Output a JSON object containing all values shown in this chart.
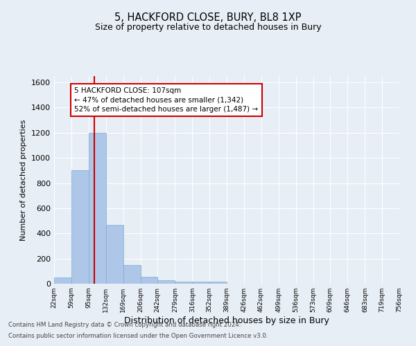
{
  "title1": "5, HACKFORD CLOSE, BURY, BL8 1XP",
  "title2": "Size of property relative to detached houses in Bury",
  "xlabel": "Distribution of detached houses by size in Bury",
  "ylabel": "Number of detached properties",
  "footnote1": "Contains HM Land Registry data © Crown copyright and database right 2024.",
  "footnote2": "Contains public sector information licensed under the Open Government Licence v3.0.",
  "bar_left_edges": [
    22,
    59,
    95,
    132,
    169,
    206,
    242,
    279,
    316,
    352,
    389,
    426,
    462,
    499,
    536,
    573,
    609,
    646,
    683,
    719
  ],
  "bar_widths": [
    37,
    36,
    37,
    37,
    37,
    36,
    37,
    37,
    36,
    37,
    37,
    36,
    37,
    37,
    37,
    36,
    37,
    37,
    36,
    37
  ],
  "bar_heights": [
    50,
    900,
    1200,
    470,
    150,
    55,
    25,
    18,
    15,
    15,
    0,
    0,
    0,
    0,
    0,
    0,
    0,
    0,
    0,
    0
  ],
  "bar_color": "#aec6e8",
  "bar_edgecolor": "#7bafd4",
  "tick_labels": [
    "22sqm",
    "59sqm",
    "95sqm",
    "132sqm",
    "169sqm",
    "206sqm",
    "242sqm",
    "279sqm",
    "316sqm",
    "352sqm",
    "389sqm",
    "426sqm",
    "462sqm",
    "499sqm",
    "536sqm",
    "573sqm",
    "609sqm",
    "646sqm",
    "683sqm",
    "719sqm",
    "756sqm"
  ],
  "tick_positions": [
    22,
    59,
    95,
    132,
    169,
    206,
    242,
    279,
    316,
    352,
    389,
    426,
    462,
    499,
    536,
    573,
    609,
    646,
    683,
    719,
    756
  ],
  "ylim": [
    0,
    1650
  ],
  "xlim": [
    22,
    756
  ],
  "property_size": 107,
  "red_line_color": "#cc0000",
  "annotation_line1": "5 HACKFORD CLOSE: 107sqm",
  "annotation_line2": "← 47% of detached houses are smaller (1,342)",
  "annotation_line3": "52% of semi-detached houses are larger (1,487) →",
  "annotation_box_color": "#cc0000",
  "annotation_box_facecolor": "white",
  "background_color": "#e8eef5",
  "plot_bg_color": "#e8eef5",
  "grid_color": "white",
  "yticks": [
    0,
    200,
    400,
    600,
    800,
    1000,
    1200,
    1400,
    1600
  ]
}
